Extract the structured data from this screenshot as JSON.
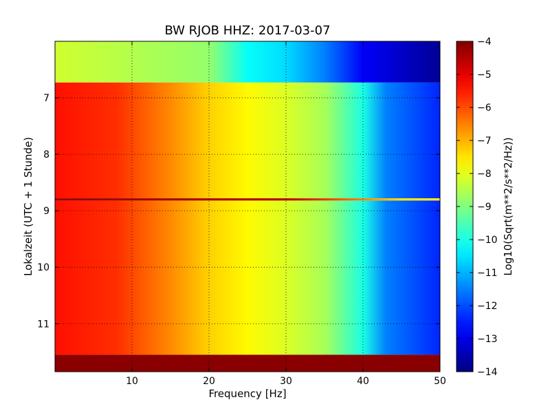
{
  "chart_data": {
    "type": "heatmap",
    "title": "BW RJOB HHZ: 2017-03-07",
    "xlabel": "Frequency [Hz]",
    "ylabel": "Lokalzeit (UTC + 1 Stunde)",
    "colorbar_label": "Log10(Sqrt(m**2/s**2/Hz))",
    "xlim": [
      0,
      50
    ],
    "ylim": [
      6.0,
      11.85
    ],
    "y_inverted": true,
    "x_ticks": [
      10,
      20,
      30,
      40,
      50
    ],
    "y_ticks": [
      7,
      8,
      9,
      10,
      11
    ],
    "clim": [
      -14,
      -4
    ],
    "colorbar_ticks": [
      -4,
      -5,
      -6,
      -7,
      -8,
      -9,
      -10,
      -11,
      -12,
      -13,
      -14
    ],
    "colormap": "jet",
    "grid": true,
    "grid_style": "dotted",
    "bands": [
      {
        "start": 6.0,
        "end": 6.73,
        "profile": [
          [
            0,
            -8.2
          ],
          [
            20,
            -8.8
          ],
          [
            25,
            -10.2
          ],
          [
            30,
            -10.6
          ],
          [
            35,
            -11.5
          ],
          [
            40,
            -12.8
          ],
          [
            50,
            -13.8
          ]
        ]
      },
      {
        "start": 6.73,
        "end": 8.78,
        "profile": [
          [
            0,
            -5.4
          ],
          [
            8,
            -5.7
          ],
          [
            15,
            -6.6
          ],
          [
            20,
            -7.3
          ],
          [
            25,
            -7.7
          ],
          [
            30,
            -8.1
          ],
          [
            35,
            -8.6
          ],
          [
            40,
            -10
          ],
          [
            43,
            -11.5
          ],
          [
            50,
            -12.4
          ]
        ]
      },
      {
        "start": 8.78,
        "end": 8.82,
        "profile": [
          [
            0,
            -4.2
          ],
          [
            30,
            -4.5
          ],
          [
            40,
            -6.5
          ],
          [
            45,
            -7.5
          ],
          [
            50,
            -7.6
          ]
        ]
      },
      {
        "start": 8.82,
        "end": 11.55,
        "profile": [
          [
            0,
            -5.4
          ],
          [
            8,
            -5.7
          ],
          [
            15,
            -6.6
          ],
          [
            20,
            -7.3
          ],
          [
            25,
            -7.7
          ],
          [
            30,
            -8.1
          ],
          [
            35,
            -8.6
          ],
          [
            40,
            -10
          ],
          [
            43,
            -11.5
          ],
          [
            50,
            -12.4
          ]
        ]
      },
      {
        "start": 11.55,
        "end": 11.85,
        "profile": [
          [
            0,
            -4.1
          ],
          [
            50,
            -4.1
          ]
        ]
      }
    ]
  }
}
